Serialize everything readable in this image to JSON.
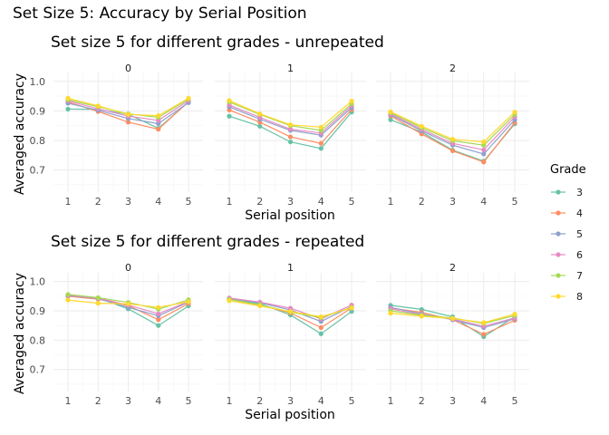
{
  "suptitle": "Set Size 5: Accuracy by Serial Position",
  "legend": {
    "title": "Grade",
    "placement": "right",
    "entries": [
      "3",
      "4",
      "5",
      "6",
      "7",
      "8"
    ],
    "colors": [
      "#66c2a5",
      "#fc8d62",
      "#8da0cb",
      "#e78ac3",
      "#a6d854",
      "#ffd92f"
    ]
  },
  "chart_data": [
    {
      "type": "line",
      "title": "Set size 5 for different grades - unrepeated",
      "xlabel": "Serial position",
      "ylabel": "Averaged accuracy",
      "x": [
        1,
        2,
        3,
        4,
        5
      ],
      "xticks": [
        "1",
        "2",
        "3",
        "4",
        "5"
      ],
      "ylim": [
        0.625,
        1.03
      ],
      "yticks": [
        0.7,
        0.8,
        0.9,
        1.0
      ],
      "ytick_labels": [
        "0.7",
        "0.8",
        "0.9",
        "1.0"
      ],
      "grid": true,
      "facets": [
        {
          "label": "0",
          "series": [
            {
              "name": "3",
              "values": [
                0.906,
                0.905,
                0.889,
                0.841,
                0.93
              ]
            },
            {
              "name": "4",
              "values": [
                0.93,
                0.898,
                0.862,
                0.838,
                0.931
              ]
            },
            {
              "name": "5",
              "values": [
                0.926,
                0.902,
                0.874,
                0.857,
                0.928
              ]
            },
            {
              "name": "6",
              "values": [
                0.934,
                0.907,
                0.882,
                0.868,
                0.935
              ]
            },
            {
              "name": "7",
              "values": [
                0.938,
                0.914,
                0.89,
                0.878,
                0.94
              ]
            },
            {
              "name": "8",
              "values": [
                0.943,
                0.917,
                0.888,
                0.884,
                0.943
              ]
            }
          ]
        },
        {
          "label": "1",
          "series": [
            {
              "name": "3",
              "values": [
                0.882,
                0.848,
                0.795,
                0.773,
                0.896
              ]
            },
            {
              "name": "4",
              "values": [
                0.903,
                0.862,
                0.812,
                0.79,
                0.905
              ]
            },
            {
              "name": "5",
              "values": [
                0.914,
                0.872,
                0.834,
                0.818,
                0.911
              ]
            },
            {
              "name": "6",
              "values": [
                0.92,
                0.878,
                0.838,
                0.825,
                0.918
              ]
            },
            {
              "name": "7",
              "values": [
                0.93,
                0.888,
                0.85,
                0.834,
                0.924
              ]
            },
            {
              "name": "8",
              "values": [
                0.935,
                0.89,
                0.853,
                0.845,
                0.933
              ]
            }
          ]
        },
        {
          "label": "2",
          "series": [
            {
              "name": "3",
              "values": [
                0.87,
                0.828,
                0.767,
                0.73,
                0.856
              ]
            },
            {
              "name": "4",
              "values": [
                0.883,
                0.822,
                0.765,
                0.727,
                0.86
              ]
            },
            {
              "name": "5",
              "values": [
                0.887,
                0.832,
                0.784,
                0.754,
                0.87
              ]
            },
            {
              "name": "6",
              "values": [
                0.89,
                0.837,
                0.79,
                0.768,
                0.88
              ]
            },
            {
              "name": "7",
              "values": [
                0.894,
                0.843,
                0.799,
                0.784,
                0.888
              ]
            },
            {
              "name": "8",
              "values": [
                0.897,
                0.848,
                0.804,
                0.795,
                0.896
              ]
            }
          ]
        }
      ]
    },
    {
      "type": "line",
      "title": "Set size 5 for different grades - repeated",
      "xlabel": "Serial position",
      "ylabel": "Averaged accuracy",
      "x": [
        1,
        2,
        3,
        4,
        5
      ],
      "xticks": [
        "1",
        "2",
        "3",
        "4",
        "5"
      ],
      "ylim": [
        0.625,
        1.03
      ],
      "yticks": [
        0.7,
        0.8,
        0.9,
        1.0
      ],
      "ytick_labels": [
        "0.7",
        "0.8",
        "0.9",
        "1.0"
      ],
      "grid": true,
      "facets": [
        {
          "label": "0",
          "series": [
            {
              "name": "3",
              "values": [
                0.951,
                0.944,
                0.907,
                0.85,
                0.917
              ]
            },
            {
              "name": "4",
              "values": [
                0.95,
                0.94,
                0.918,
                0.87,
                0.925
              ]
            },
            {
              "name": "5",
              "values": [
                0.952,
                0.942,
                0.912,
                0.883,
                0.93
              ]
            },
            {
              "name": "6",
              "values": [
                0.954,
                0.943,
                0.92,
                0.89,
                0.932
              ]
            },
            {
              "name": "7",
              "values": [
                0.956,
                0.945,
                0.929,
                0.906,
                0.938
              ]
            },
            {
              "name": "8",
              "values": [
                0.937,
                0.926,
                0.924,
                0.912,
                0.931
              ]
            }
          ]
        },
        {
          "label": "1",
          "series": [
            {
              "name": "3",
              "values": [
                0.94,
                0.925,
                0.886,
                0.822,
                0.898
              ]
            },
            {
              "name": "4",
              "values": [
                0.94,
                0.92,
                0.893,
                0.843,
                0.91
              ]
            },
            {
              "name": "5",
              "values": [
                0.943,
                0.928,
                0.903,
                0.864,
                0.915
              ]
            },
            {
              "name": "6",
              "values": [
                0.944,
                0.93,
                0.909,
                0.873,
                0.92
              ]
            },
            {
              "name": "7",
              "values": [
                0.939,
                0.921,
                0.896,
                0.877,
                0.912
              ]
            },
            {
              "name": "8",
              "values": [
                0.935,
                0.917,
                0.898,
                0.88,
                0.91
              ]
            }
          ]
        },
        {
          "label": "2",
          "series": [
            {
              "name": "3",
              "values": [
                0.919,
                0.905,
                0.88,
                0.812,
                0.88
              ]
            },
            {
              "name": "4",
              "values": [
                0.91,
                0.895,
                0.87,
                0.82,
                0.868
              ]
            },
            {
              "name": "5",
              "values": [
                0.912,
                0.89,
                0.87,
                0.843,
                0.873
              ]
            },
            {
              "name": "6",
              "values": [
                0.907,
                0.887,
                0.872,
                0.848,
                0.876
              ]
            },
            {
              "name": "7",
              "values": [
                0.9,
                0.885,
                0.876,
                0.857,
                0.884
              ]
            },
            {
              "name": "8",
              "values": [
                0.892,
                0.882,
                0.874,
                0.86,
                0.889
              ]
            }
          ]
        }
      ]
    }
  ]
}
